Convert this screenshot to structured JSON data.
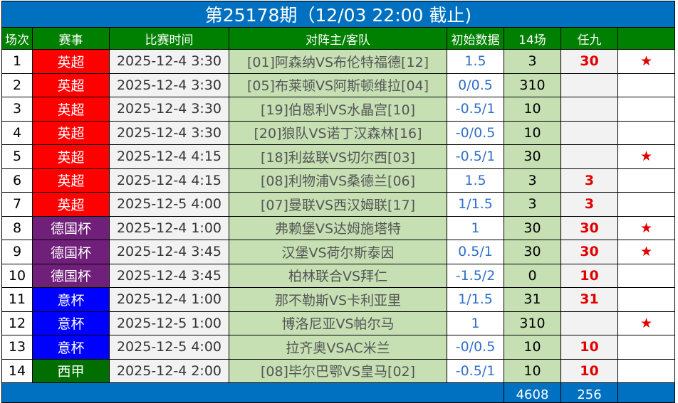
{
  "title": "第25178期（12/03 22:00 截止)",
  "headers": [
    "场次",
    "赛事",
    "比赛时间",
    "对阵主/客队",
    "初始数据",
    "14场",
    "任九",
    ""
  ],
  "league_colors": {
    "英超": "#ff0000",
    "德国杯": "#70207a",
    "意杯": "#0000ff",
    "西甲": "#006e00"
  },
  "rows": [
    {
      "no": "1",
      "league": "英超",
      "time": "2025-12-4 3:30",
      "match": "[01]阿森纳VS布伦特福德[12]",
      "odds": "1.5",
      "c14": "3",
      "r9": "30",
      "star": "★"
    },
    {
      "no": "2",
      "league": "英超",
      "time": "2025-12-4 3:30",
      "match": "[05]布莱顿VS阿斯顿维拉[04]",
      "odds": "0/0.5",
      "c14": "310",
      "r9": "",
      "star": ""
    },
    {
      "no": "3",
      "league": "英超",
      "time": "2025-12-4 3:30",
      "match": "[19]伯恩利VS水晶宫[10]",
      "odds": "-0.5/1",
      "c14": "10",
      "r9": "",
      "star": ""
    },
    {
      "no": "4",
      "league": "英超",
      "time": "2025-12-4 3:30",
      "match": "[20]狼队VS诺丁汉森林[16]",
      "odds": "-0/0.5",
      "c14": "10",
      "r9": "",
      "star": ""
    },
    {
      "no": "5",
      "league": "英超",
      "time": "2025-12-4 4:15",
      "match": "[18]利兹联VS切尔西[03]",
      "odds": "-0.5/1",
      "c14": "30",
      "r9": "",
      "star": "★"
    },
    {
      "no": "6",
      "league": "英超",
      "time": "2025-12-4 4:15",
      "match": "[08]利物浦VS桑德兰[06]",
      "odds": "1.5",
      "c14": "3",
      "r9": "3",
      "star": ""
    },
    {
      "no": "7",
      "league": "英超",
      "time": "2025-12-5 4:00",
      "match": "[07]曼联VS西汉姆联[17]",
      "odds": "1/1.5",
      "c14": "3",
      "r9": "3",
      "star": ""
    },
    {
      "no": "8",
      "league": "德国杯",
      "time": "2025-12-4 1:00",
      "match": "弗赖堡VS达姆施塔特",
      "odds": "1",
      "c14": "30",
      "r9": "30",
      "star": "★"
    },
    {
      "no": "9",
      "league": "德国杯",
      "time": "2025-12-4 3:45",
      "match": "汉堡VS荷尔斯泰因",
      "odds": "0.5/1",
      "c14": "30",
      "r9": "30",
      "star": "★"
    },
    {
      "no": "10",
      "league": "德国杯",
      "time": "2025-12-4 3:45",
      "match": "柏林联合VS拜仁",
      "odds": "-1.5/2",
      "c14": "0",
      "r9": "10",
      "star": ""
    },
    {
      "no": "11",
      "league": "意杯",
      "time": "2025-12-4 1:00",
      "match": "那不勒斯VS卡利亚里",
      "odds": "1/1.5",
      "c14": "31",
      "r9": "31",
      "star": ""
    },
    {
      "no": "12",
      "league": "意杯",
      "time": "2025-12-5 1:00",
      "match": "博洛尼亚VS帕尔马",
      "odds": "1",
      "c14": "310",
      "r9": "",
      "star": "★"
    },
    {
      "no": "13",
      "league": "意杯",
      "time": "2025-12-5 4:00",
      "match": "拉齐奥VSAC米兰",
      "odds": "-0/0.5",
      "c14": "10",
      "r9": "10",
      "star": ""
    },
    {
      "no": "14",
      "league": "西甲",
      "time": "2025-12-4 2:00",
      "match": "[08]毕尔巴鄂VS皇马[02]",
      "odds": "-0.5/1",
      "c14": "10",
      "r9": "10",
      "star": ""
    }
  ],
  "footer": {
    "c14_total": "4608",
    "r9_total": "256"
  }
}
